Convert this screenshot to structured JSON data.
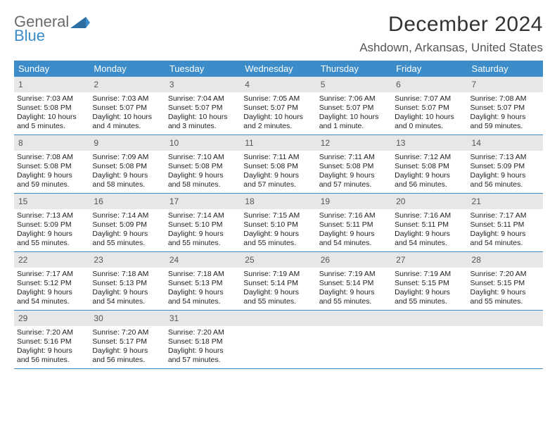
{
  "logo": {
    "word1": "General",
    "word2": "Blue"
  },
  "title": "December 2024",
  "location": "Ashdown, Arkansas, United States",
  "colors": {
    "header_bg": "#3b8cc9",
    "header_text": "#ffffff",
    "daynum_bg": "#e7e7e7",
    "border": "#3b8cc9",
    "text": "#222222",
    "title": "#333333",
    "location": "#555555",
    "logo_gray": "#6b6b6b",
    "logo_blue": "#3b8cc9"
  },
  "dow": [
    "Sunday",
    "Monday",
    "Tuesday",
    "Wednesday",
    "Thursday",
    "Friday",
    "Saturday"
  ],
  "weeks": [
    [
      {
        "n": "1",
        "sr": "Sunrise: 7:03 AM",
        "ss": "Sunset: 5:08 PM",
        "d1": "Daylight: 10 hours",
        "d2": "and 5 minutes."
      },
      {
        "n": "2",
        "sr": "Sunrise: 7:03 AM",
        "ss": "Sunset: 5:07 PM",
        "d1": "Daylight: 10 hours",
        "d2": "and 4 minutes."
      },
      {
        "n": "3",
        "sr": "Sunrise: 7:04 AM",
        "ss": "Sunset: 5:07 PM",
        "d1": "Daylight: 10 hours",
        "d2": "and 3 minutes."
      },
      {
        "n": "4",
        "sr": "Sunrise: 7:05 AM",
        "ss": "Sunset: 5:07 PM",
        "d1": "Daylight: 10 hours",
        "d2": "and 2 minutes."
      },
      {
        "n": "5",
        "sr": "Sunrise: 7:06 AM",
        "ss": "Sunset: 5:07 PM",
        "d1": "Daylight: 10 hours",
        "d2": "and 1 minute."
      },
      {
        "n": "6",
        "sr": "Sunrise: 7:07 AM",
        "ss": "Sunset: 5:07 PM",
        "d1": "Daylight: 10 hours",
        "d2": "and 0 minutes."
      },
      {
        "n": "7",
        "sr": "Sunrise: 7:08 AM",
        "ss": "Sunset: 5:07 PM",
        "d1": "Daylight: 9 hours",
        "d2": "and 59 minutes."
      }
    ],
    [
      {
        "n": "8",
        "sr": "Sunrise: 7:08 AM",
        "ss": "Sunset: 5:08 PM",
        "d1": "Daylight: 9 hours",
        "d2": "and 59 minutes."
      },
      {
        "n": "9",
        "sr": "Sunrise: 7:09 AM",
        "ss": "Sunset: 5:08 PM",
        "d1": "Daylight: 9 hours",
        "d2": "and 58 minutes."
      },
      {
        "n": "10",
        "sr": "Sunrise: 7:10 AM",
        "ss": "Sunset: 5:08 PM",
        "d1": "Daylight: 9 hours",
        "d2": "and 58 minutes."
      },
      {
        "n": "11",
        "sr": "Sunrise: 7:11 AM",
        "ss": "Sunset: 5:08 PM",
        "d1": "Daylight: 9 hours",
        "d2": "and 57 minutes."
      },
      {
        "n": "12",
        "sr": "Sunrise: 7:11 AM",
        "ss": "Sunset: 5:08 PM",
        "d1": "Daylight: 9 hours",
        "d2": "and 57 minutes."
      },
      {
        "n": "13",
        "sr": "Sunrise: 7:12 AM",
        "ss": "Sunset: 5:08 PM",
        "d1": "Daylight: 9 hours",
        "d2": "and 56 minutes."
      },
      {
        "n": "14",
        "sr": "Sunrise: 7:13 AM",
        "ss": "Sunset: 5:09 PM",
        "d1": "Daylight: 9 hours",
        "d2": "and 56 minutes."
      }
    ],
    [
      {
        "n": "15",
        "sr": "Sunrise: 7:13 AM",
        "ss": "Sunset: 5:09 PM",
        "d1": "Daylight: 9 hours",
        "d2": "and 55 minutes."
      },
      {
        "n": "16",
        "sr": "Sunrise: 7:14 AM",
        "ss": "Sunset: 5:09 PM",
        "d1": "Daylight: 9 hours",
        "d2": "and 55 minutes."
      },
      {
        "n": "17",
        "sr": "Sunrise: 7:14 AM",
        "ss": "Sunset: 5:10 PM",
        "d1": "Daylight: 9 hours",
        "d2": "and 55 minutes."
      },
      {
        "n": "18",
        "sr": "Sunrise: 7:15 AM",
        "ss": "Sunset: 5:10 PM",
        "d1": "Daylight: 9 hours",
        "d2": "and 55 minutes."
      },
      {
        "n": "19",
        "sr": "Sunrise: 7:16 AM",
        "ss": "Sunset: 5:11 PM",
        "d1": "Daylight: 9 hours",
        "d2": "and 54 minutes."
      },
      {
        "n": "20",
        "sr": "Sunrise: 7:16 AM",
        "ss": "Sunset: 5:11 PM",
        "d1": "Daylight: 9 hours",
        "d2": "and 54 minutes."
      },
      {
        "n": "21",
        "sr": "Sunrise: 7:17 AM",
        "ss": "Sunset: 5:11 PM",
        "d1": "Daylight: 9 hours",
        "d2": "and 54 minutes."
      }
    ],
    [
      {
        "n": "22",
        "sr": "Sunrise: 7:17 AM",
        "ss": "Sunset: 5:12 PM",
        "d1": "Daylight: 9 hours",
        "d2": "and 54 minutes."
      },
      {
        "n": "23",
        "sr": "Sunrise: 7:18 AM",
        "ss": "Sunset: 5:13 PM",
        "d1": "Daylight: 9 hours",
        "d2": "and 54 minutes."
      },
      {
        "n": "24",
        "sr": "Sunrise: 7:18 AM",
        "ss": "Sunset: 5:13 PM",
        "d1": "Daylight: 9 hours",
        "d2": "and 54 minutes."
      },
      {
        "n": "25",
        "sr": "Sunrise: 7:19 AM",
        "ss": "Sunset: 5:14 PM",
        "d1": "Daylight: 9 hours",
        "d2": "and 55 minutes."
      },
      {
        "n": "26",
        "sr": "Sunrise: 7:19 AM",
        "ss": "Sunset: 5:14 PM",
        "d1": "Daylight: 9 hours",
        "d2": "and 55 minutes."
      },
      {
        "n": "27",
        "sr": "Sunrise: 7:19 AM",
        "ss": "Sunset: 5:15 PM",
        "d1": "Daylight: 9 hours",
        "d2": "and 55 minutes."
      },
      {
        "n": "28",
        "sr": "Sunrise: 7:20 AM",
        "ss": "Sunset: 5:15 PM",
        "d1": "Daylight: 9 hours",
        "d2": "and 55 minutes."
      }
    ],
    [
      {
        "n": "29",
        "sr": "Sunrise: 7:20 AM",
        "ss": "Sunset: 5:16 PM",
        "d1": "Daylight: 9 hours",
        "d2": "and 56 minutes."
      },
      {
        "n": "30",
        "sr": "Sunrise: 7:20 AM",
        "ss": "Sunset: 5:17 PM",
        "d1": "Daylight: 9 hours",
        "d2": "and 56 minutes."
      },
      {
        "n": "31",
        "sr": "Sunrise: 7:20 AM",
        "ss": "Sunset: 5:18 PM",
        "d1": "Daylight: 9 hours",
        "d2": "and 57 minutes."
      },
      {
        "n": "",
        "sr": "",
        "ss": "",
        "d1": "",
        "d2": ""
      },
      {
        "n": "",
        "sr": "",
        "ss": "",
        "d1": "",
        "d2": ""
      },
      {
        "n": "",
        "sr": "",
        "ss": "",
        "d1": "",
        "d2": ""
      },
      {
        "n": "",
        "sr": "",
        "ss": "",
        "d1": "",
        "d2": ""
      }
    ]
  ]
}
